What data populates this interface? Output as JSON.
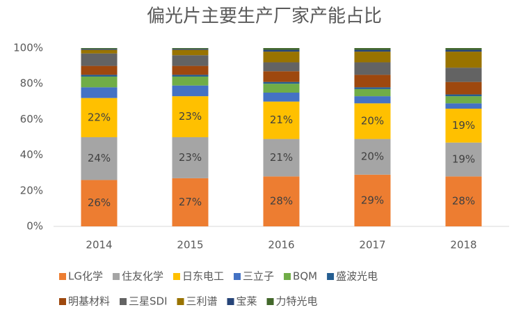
{
  "chart_data": {
    "type": "stacked_bar",
    "title": "偏光片主要生产厂家产能占比",
    "categories": [
      "2014",
      "2015",
      "2016",
      "2017",
      "2018"
    ],
    "ylim": [
      0,
      100
    ],
    "yticks": [
      {
        "value": 0,
        "label": "0%"
      },
      {
        "value": 20,
        "label": "20%"
      },
      {
        "value": 40,
        "label": "40%"
      },
      {
        "value": 60,
        "label": "60%"
      },
      {
        "value": 80,
        "label": "80%"
      },
      {
        "value": 100,
        "label": "100%"
      }
    ],
    "series": [
      {
        "name": "LG化学",
        "color": "#ED7D31",
        "values": [
          26,
          27,
          28,
          29,
          28
        ],
        "value_labels": [
          "26%",
          "27%",
          "28%",
          "29%",
          "28%"
        ]
      },
      {
        "name": "住友化学",
        "color": "#A5A5A5",
        "values": [
          24,
          23,
          21,
          20,
          19
        ],
        "value_labels": [
          "24%",
          "23%",
          "21%",
          "20%",
          "19%"
        ]
      },
      {
        "name": "日东电工",
        "color": "#FFC000",
        "values": [
          22,
          23,
          21,
          20,
          19
        ],
        "value_labels": [
          "22%",
          "23%",
          "21%",
          "20%",
          "19%"
        ]
      },
      {
        "name": "三立子",
        "color": "#4472C4",
        "values": [
          6,
          6,
          5,
          4,
          3
        ]
      },
      {
        "name": "BQM",
        "color": "#70AD47",
        "values": [
          6,
          5,
          5,
          4,
          4
        ]
      },
      {
        "name": "盛波光电",
        "color": "#255E91",
        "values": [
          1,
          1,
          1,
          1,
          1
        ]
      },
      {
        "name": "明基材料",
        "color": "#9E480E",
        "values": [
          5,
          5,
          6,
          7,
          7
        ]
      },
      {
        "name": "三星SDI",
        "color": "#636363",
        "values": [
          7,
          6,
          5,
          7,
          8
        ]
      },
      {
        "name": "三利谱",
        "color": "#997300",
        "values": [
          2,
          3,
          6,
          6,
          9
        ]
      },
      {
        "name": "宝莱",
        "color": "#264478",
        "values": [
          0.5,
          0.5,
          1,
          1,
          1
        ]
      },
      {
        "name": "力特光电",
        "color": "#43682B",
        "values": [
          0.5,
          0.5,
          1,
          1,
          1
        ]
      }
    ]
  }
}
